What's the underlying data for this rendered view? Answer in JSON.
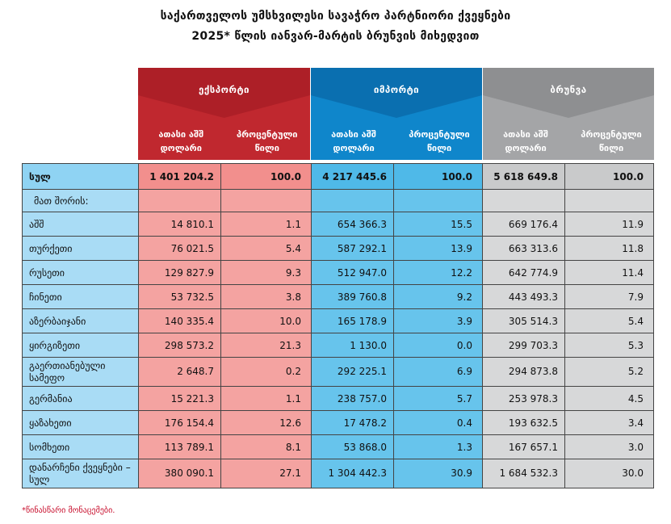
{
  "title_line1": "საქართველოს უმსხვილესი სავაჭრო პარტნიორი ქვეყნები",
  "title_line2": "2025* წლის იანვარ-მარტის ბრუნვის მიხედვით",
  "groups": {
    "export": {
      "label": "ექსპორტი",
      "col1": "ათასი აშშ დოლარი",
      "col2": "პროცენტული წილი",
      "color": "#c0282f"
    },
    "import": {
      "label": "იმპორტი",
      "col1": "ათასი აშშ დოლარი",
      "col2": "პროცენტული წილი",
      "color": "#0f86cb"
    },
    "turnover": {
      "label": "ბრუნვა",
      "col1": "ათასი აშშ დოლარი",
      "col2": "პროცენტული წილი",
      "color": "#a4a5a7"
    }
  },
  "total_row": {
    "country": "სულ",
    "export_value": "1 401 204.2",
    "export_share": "100.0",
    "import_value": "4 217 445.6",
    "import_share": "100.0",
    "turnover_value": "5 618 649.8",
    "turnover_share": "100.0"
  },
  "among_label": "მათ შორის:",
  "rows": [
    {
      "country": "აშშ",
      "export_value": "14 810.1",
      "export_share": "1.1",
      "import_value": "654 366.3",
      "import_share": "15.5",
      "turnover_value": "669 176.4",
      "turnover_share": "11.9"
    },
    {
      "country": "თურქეთი",
      "export_value": "76 021.5",
      "export_share": "5.4",
      "import_value": "587 292.1",
      "import_share": "13.9",
      "turnover_value": "663 313.6",
      "turnover_share": "11.8"
    },
    {
      "country": "რუსეთი",
      "export_value": "129 827.9",
      "export_share": "9.3",
      "import_value": "512 947.0",
      "import_share": "12.2",
      "turnover_value": "642 774.9",
      "turnover_share": "11.4"
    },
    {
      "country": "ჩინეთი",
      "export_value": "53 732.5",
      "export_share": "3.8",
      "import_value": "389 760.8",
      "import_share": "9.2",
      "turnover_value": "443 493.3",
      "turnover_share": "7.9"
    },
    {
      "country": "აზერბაიჯანი",
      "export_value": "140 335.4",
      "export_share": "10.0",
      "import_value": "165 178.9",
      "import_share": "3.9",
      "turnover_value": "305 514.3",
      "turnover_share": "5.4"
    },
    {
      "country": "ყირგიზეთი",
      "export_value": "298 573.2",
      "export_share": "21.3",
      "import_value": "1 130.0",
      "import_share": "0.0",
      "turnover_value": "299 703.3",
      "turnover_share": "5.3"
    },
    {
      "country": "გაერთიანებული სამეფო",
      "export_value": "2 648.7",
      "export_share": "0.2",
      "import_value": "292 225.1",
      "import_share": "6.9",
      "turnover_value": "294 873.8",
      "turnover_share": "5.2"
    },
    {
      "country": "გერმანია",
      "export_value": "15 221.3",
      "export_share": "1.1",
      "import_value": "238 757.0",
      "import_share": "5.7",
      "turnover_value": "253 978.3",
      "turnover_share": "4.5"
    },
    {
      "country": "ყაზახეთი",
      "export_value": "176 154.4",
      "export_share": "12.6",
      "import_value": "17 478.2",
      "import_share": "0.4",
      "turnover_value": "193 632.5",
      "turnover_share": "3.4"
    },
    {
      "country": "სომხეთი",
      "export_value": "113 789.1",
      "export_share": "8.1",
      "import_value": "53 868.0",
      "import_share": "1.3",
      "turnover_value": "167 657.1",
      "turnover_share": "3.0"
    },
    {
      "country": "დანარჩენი ქვეყნები – სულ",
      "export_value": "380 090.1",
      "export_share": "27.1",
      "import_value": "1 304 442.3",
      "import_share": "30.9",
      "turnover_value": "1 684 532.3",
      "turnover_share": "30.0"
    }
  ],
  "footnote": "*წინასწარი მონაცემები."
}
